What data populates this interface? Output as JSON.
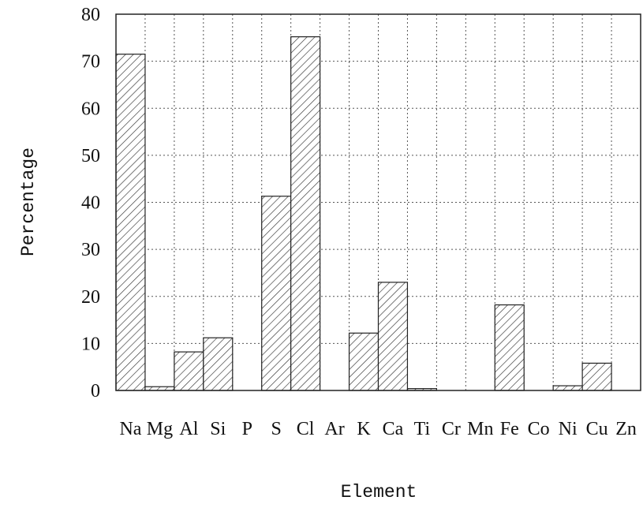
{
  "chart_data": {
    "type": "bar",
    "title": "",
    "xlabel": "Element",
    "ylabel": "Percentage",
    "ylim": [
      0,
      80
    ],
    "yticks": [
      0,
      10,
      20,
      30,
      40,
      50,
      60,
      70,
      80
    ],
    "grid": true,
    "bar_fill": "diagonal-hatch",
    "categories": [
      "Na",
      "Mg",
      "Al",
      "Si",
      "P",
      "S",
      "Cl",
      "Ar",
      "K",
      "Ca",
      "Ti",
      "Cr",
      "Mn",
      "Fe",
      "Co",
      "Ni",
      "Cu",
      "Zn"
    ],
    "values": [
      71.5,
      0.8,
      8.2,
      11.2,
      0,
      41.3,
      75.2,
      0,
      12.2,
      23.0,
      0.4,
      0,
      0,
      18.2,
      0,
      1.0,
      5.8,
      0
    ]
  },
  "colors": {
    "grid": "#555555",
    "frame": "#222222",
    "bar_stroke": "#222222",
    "hatch": "#333333",
    "background": "#ffffff"
  }
}
